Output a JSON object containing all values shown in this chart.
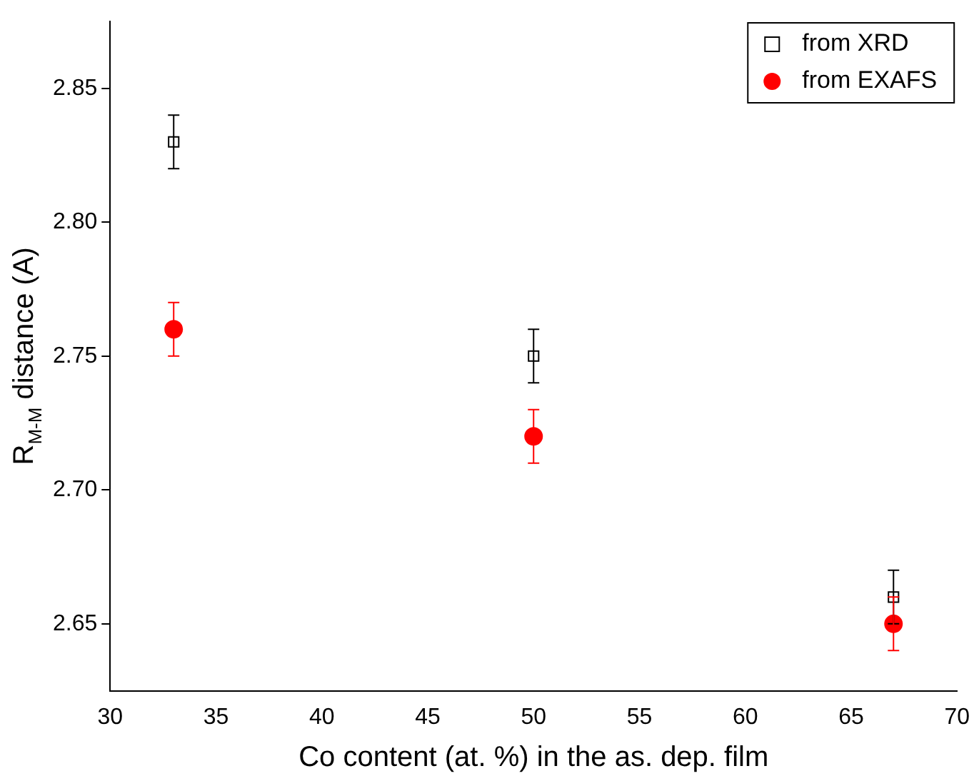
{
  "chart_data": {
    "type": "scatter",
    "xlabel": "Co content (at. %) in the as. dep. film",
    "ylabel": "R$_{M-M}$ distance (A)",
    "x": [
      33,
      50,
      67
    ],
    "series": [
      {
        "name": "from XRD",
        "color": "#000000",
        "marker": "square",
        "values": [
          2.83,
          2.75,
          2.66
        ],
        "errors": [
          0.01,
          0.01,
          0.01
        ]
      },
      {
        "name": "from EXAFS",
        "color": "#ff0000",
        "marker": "circle",
        "values": [
          2.76,
          2.72,
          2.65
        ],
        "errors": [
          0.01,
          0.01,
          0.01
        ]
      }
    ],
    "xlim": [
      30,
      70
    ],
    "xticks": [
      30,
      35,
      40,
      45,
      50,
      55,
      60,
      65,
      70
    ],
    "ylim": [
      2.625,
      2.875
    ],
    "yticks": [
      {
        "value": 2.65,
        "label": "2.65"
      },
      {
        "value": 2.7,
        "label": "2.70"
      },
      {
        "value": 2.75,
        "label": "2.75"
      },
      {
        "value": 2.8,
        "label": "2.80"
      },
      {
        "value": 2.85,
        "label": "2.85"
      }
    ],
    "grid": false,
    "legend": "top right"
  }
}
